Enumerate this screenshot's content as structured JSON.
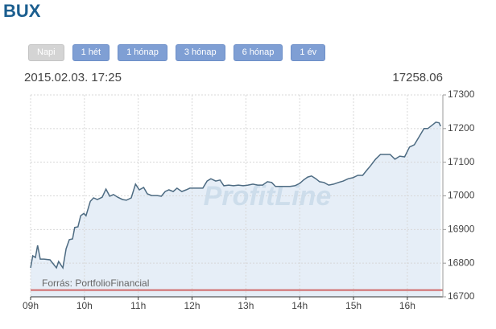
{
  "header": {
    "title": "BUX"
  },
  "buttons": [
    "Napi",
    "1 hét",
    "1 hónap",
    "3 hónap",
    "6 hónap",
    "1 év"
  ],
  "active_button": 0,
  "chart_data": {
    "type": "line",
    "timestamp": "2015.02.03. 17:25",
    "last_value": "17258.06",
    "watermark": "ProfitLine",
    "source": "Forrás: PortfolioFinancial",
    "x": [
      9.0,
      9.04,
      9.09,
      9.13,
      9.18,
      9.25,
      9.36,
      9.42,
      9.48,
      9.52,
      9.6,
      9.66,
      9.72,
      9.78,
      9.82,
      9.88,
      9.93,
      9.99,
      10.03,
      10.11,
      10.17,
      10.24,
      10.33,
      10.4,
      10.47,
      10.54,
      10.62,
      10.71,
      10.78,
      10.87,
      10.95,
      11.02,
      11.1,
      11.17,
      11.25,
      11.35,
      11.43,
      11.5,
      11.57,
      11.65,
      11.72,
      11.81,
      11.89,
      11.96,
      12.04,
      12.11,
      12.2,
      12.28,
      12.35,
      12.44,
      12.52,
      12.59,
      12.68,
      12.77,
      12.86,
      12.95,
      13.04,
      13.13,
      13.22,
      13.31,
      13.4,
      13.48,
      13.55,
      13.64,
      13.73,
      13.82,
      13.91,
      14.0,
      14.07,
      14.15,
      14.22,
      14.3,
      14.37,
      14.45,
      14.54,
      14.63,
      14.72,
      14.81,
      14.9,
      14.99,
      15.08,
      15.17,
      15.24,
      15.32,
      15.41,
      15.5,
      15.59,
      15.68,
      15.77,
      15.86,
      15.95,
      16.04,
      16.13,
      16.22,
      16.31,
      16.38,
      16.46,
      16.53,
      16.59,
      16.62
    ],
    "series": [
      {
        "color": "#4d6b82",
        "values": [
          16786,
          16822,
          16817,
          16853,
          16812,
          16812,
          16810,
          16798,
          16786,
          16805,
          16786,
          16843,
          16870,
          16872,
          16906,
          16908,
          16941,
          16948,
          16941,
          16984,
          16994,
          16989,
          16996,
          17020,
          16999,
          17004,
          16996,
          16989,
          16987,
          16994,
          17035,
          17018,
          17025,
          17006,
          17001,
          17001,
          16999,
          17013,
          17018,
          17013,
          17023,
          17013,
          17018,
          17023,
          17023,
          17023,
          17023,
          17044,
          17051,
          17044,
          17047,
          17030,
          17032,
          17030,
          17032,
          17030,
          17032,
          17035,
          17032,
          17032,
          17042,
          17040,
          17028,
          17028,
          17028,
          17028,
          17030,
          17037,
          17047,
          17056,
          17059,
          17051,
          17042,
          17040,
          17032,
          17035,
          17040,
          17044,
          17051,
          17054,
          17061,
          17061,
          17075,
          17090,
          17109,
          17123,
          17123,
          17123,
          17109,
          17118,
          17116,
          17145,
          17152,
          17176,
          17200,
          17200,
          17210,
          17219,
          17217,
          17207
        ]
      }
    ],
    "area_color": "#e6eef7",
    "reference_line": 16720,
    "reference_color": "#d06868",
    "xlim": [
      9,
      16.66
    ],
    "xticks": [
      {
        "value": 9,
        "label": "09h"
      },
      {
        "value": 10,
        "label": "10h"
      },
      {
        "value": 11,
        "label": "11h"
      },
      {
        "value": 12,
        "label": "12h"
      },
      {
        "value": 13,
        "label": "13h"
      },
      {
        "value": 14,
        "label": "14h"
      },
      {
        "value": 15,
        "label": "15h"
      },
      {
        "value": 16,
        "label": "16h"
      }
    ],
    "ylim": [
      16700,
      17300
    ],
    "yticks": [
      16700,
      16800,
      16900,
      17000,
      17100,
      17200,
      17300
    ],
    "grid": true
  }
}
